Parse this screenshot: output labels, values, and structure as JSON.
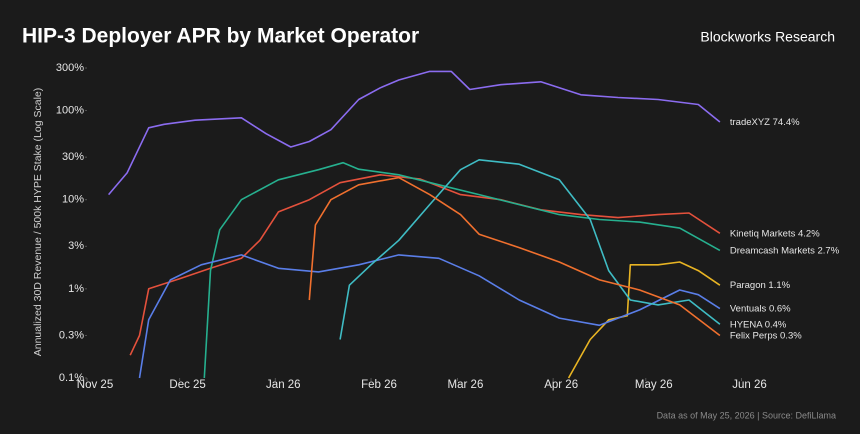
{
  "chart_data": {
    "type": "line",
    "title": "HIP-3 Deployer APR by Market Operator",
    "brand": "Blockworks Research",
    "ylabel": "Annualized 30D Revenue / 500k HYPE Stake (Log Scale)",
    "footer": "Data as of May 25, 2026 | Source: DefiLlama",
    "log_y": true,
    "grid": false,
    "xlim": [
      0,
      218
    ],
    "xticks": [
      {
        "value": 0,
        "label": "Nov 25"
      },
      {
        "value": 30,
        "label": "Dec 25"
      },
      {
        "value": 61,
        "label": "Jan 26"
      },
      {
        "value": 92,
        "label": "Feb 26"
      },
      {
        "value": 120,
        "label": "Mar 26"
      },
      {
        "value": 151,
        "label": "Apr 26"
      },
      {
        "value": 181,
        "label": "May 26"
      },
      {
        "value": 212,
        "label": "Jun 26"
      }
    ],
    "ylim": [
      0.1,
      300
    ],
    "yticks": [
      {
        "value": 0.1,
        "label": "0.1%"
      },
      {
        "value": 0.3,
        "label": "0.3%"
      },
      {
        "value": 1,
        "label": "1%"
      },
      {
        "value": 3,
        "label": "3%"
      },
      {
        "value": 10,
        "label": "10%"
      },
      {
        "value": 30,
        "label": "30%"
      },
      {
        "value": 100,
        "label": "100%"
      },
      {
        "value": 300,
        "label": "300%"
      }
    ],
    "series": [
      {
        "name": "tradeXYZ",
        "color": "#8b6cf0",
        "end_label": "74.4%",
        "x": [
          7,
          13,
          20,
          25,
          35,
          50,
          58,
          66,
          72,
          79,
          88,
          95,
          101,
          111,
          118,
          124,
          134,
          147,
          160,
          172,
          185,
          198,
          205
        ],
        "values": [
          11.4,
          20,
          64,
          70,
          78,
          83,
          55,
          39,
          45,
          61,
          133,
          180,
          220,
          275,
          275,
          172,
          195,
          210,
          150,
          140,
          133,
          117,
          74.4
        ]
      },
      {
        "name": "Kinetiq Markets",
        "color": "#e4513c",
        "end_label": "4.2%",
        "x": [
          14,
          17,
          20,
          30,
          40,
          50,
          56,
          62,
          72,
          82,
          95,
          108,
          121,
          134,
          147,
          160,
          172,
          185,
          195,
          205
        ],
        "values": [
          0.18,
          0.3,
          1.0,
          1.3,
          1.7,
          2.2,
          3.5,
          7.3,
          10,
          15.5,
          19,
          17,
          11.4,
          10,
          7.7,
          6.8,
          6.3,
          6.8,
          7.1,
          4.2
        ]
      },
      {
        "name": "Dreamcash Markets",
        "color": "#26b08f",
        "end_label": "2.7%",
        "x": [
          38,
          40,
          43,
          50,
          62,
          75,
          83,
          88,
          101,
          114,
          127,
          140,
          153,
          166,
          179,
          192,
          205
        ],
        "values": [
          0.1,
          1.6,
          4.6,
          10,
          16.7,
          21.7,
          26,
          22,
          19,
          14.7,
          11.4,
          8.8,
          6.8,
          6,
          5.6,
          4.8,
          2.7
        ]
      },
      {
        "name": "Paragon",
        "color": "#e8b423",
        "end_label": "1.1%",
        "x": [
          156,
          163,
          169,
          175,
          176,
          185,
          192,
          198,
          205
        ],
        "values": [
          0.1,
          0.27,
          0.45,
          0.5,
          1.86,
          1.86,
          2.0,
          1.6,
          1.1
        ]
      },
      {
        "name": "Ventuals",
        "color": "#5a7ee8",
        "end_label": "0.6%",
        "x": [
          17,
          20,
          27,
          37,
          50,
          62,
          75,
          88,
          101,
          114,
          127,
          140,
          153,
          166,
          179,
          192,
          198,
          205
        ],
        "values": [
          0.1,
          0.45,
          1.26,
          1.86,
          2.4,
          1.7,
          1.55,
          1.86,
          2.4,
          2.2,
          1.4,
          0.75,
          0.47,
          0.39,
          0.58,
          0.97,
          0.86,
          0.6
        ]
      },
      {
        "name": "HYENA",
        "color": "#3fbcc4",
        "end_label": "0.4%",
        "x": [
          82,
          85,
          92,
          101,
          111,
          121,
          127,
          140,
          153,
          163,
          169,
          176,
          185,
          195,
          205
        ],
        "values": [
          0.27,
          1.1,
          1.86,
          3.5,
          8.8,
          21.7,
          28,
          25,
          16.7,
          6,
          1.6,
          0.75,
          0.66,
          0.75,
          0.4
        ]
      },
      {
        "name": "Felix Perps",
        "color": "#f0702e",
        "end_label": "0.3%",
        "x": [
          72,
          74,
          79,
          88,
          101,
          111,
          121,
          127,
          140,
          153,
          166,
          179,
          192,
          205
        ],
        "values": [
          0.75,
          5.2,
          10,
          14.7,
          17.7,
          11.4,
          6.8,
          4.1,
          2.9,
          2.0,
          1.26,
          0.97,
          0.66,
          0.3
        ]
      }
    ]
  }
}
